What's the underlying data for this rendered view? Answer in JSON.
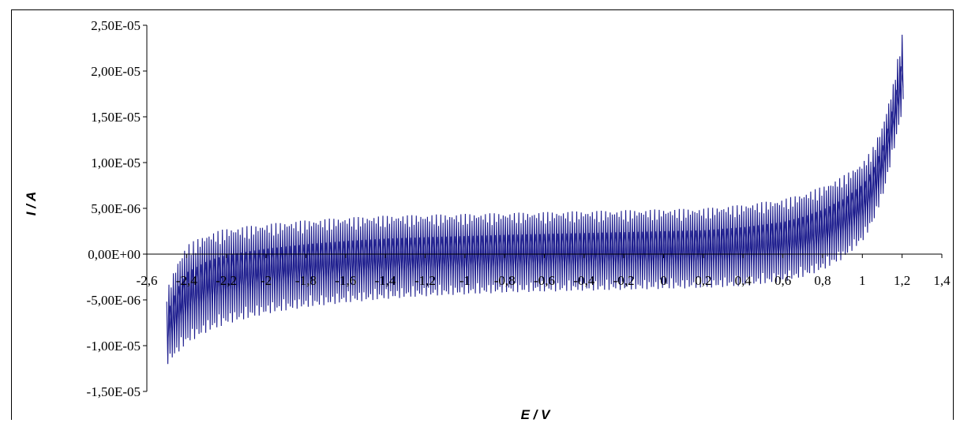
{
  "chart_data": {
    "type": "line",
    "title": "",
    "xlabel": "E / V",
    "ylabel": "I / A",
    "xlim": [
      -2.6,
      1.4
    ],
    "ylim": [
      -1.5e-05,
      2.5e-05
    ],
    "x_ticks": [
      "-2,6",
      "-2,4",
      "-2,2",
      "-2",
      "-1,8",
      "-1,6",
      "-1,4",
      "-1,2",
      "-1",
      "-0,8",
      "-0,6",
      "-0,4",
      "-0,2",
      "0",
      "0,2",
      "0,4",
      "0,6",
      "0,8",
      "1",
      "1,2",
      "1,4"
    ],
    "x_tick_values": [
      -2.6,
      -2.4,
      -2.2,
      -2.0,
      -1.8,
      -1.6,
      -1.4,
      -1.2,
      -1.0,
      -0.8,
      -0.6,
      -0.4,
      -0.2,
      0.0,
      0.2,
      0.4,
      0.6,
      0.8,
      1.0,
      1.2,
      1.4
    ],
    "y_ticks": [
      "2,50E-05",
      "2,00E-05",
      "1,50E-05",
      "1,00E-05",
      "5,00E-06",
      "0,00E+00",
      "-5,00E-06",
      "-1,00E-05",
      "-1,50E-05"
    ],
    "y_tick_values": [
      2.5e-05,
      2e-05,
      1.5e-05,
      1e-05,
      5e-06,
      0.0,
      -5e-06,
      -1e-05,
      -1.5e-05
    ],
    "grid": false,
    "legend": "none",
    "series_color": "#1a1a8c",
    "series": [
      {
        "x": [
          -2.5,
          -2.45,
          -2.4,
          -2.3,
          -2.2,
          -2.0,
          -1.8,
          -1.6,
          -1.4,
          -1.2,
          -1.0,
          -0.8,
          -0.6,
          -0.4,
          -0.2,
          0.0,
          0.2,
          0.4,
          0.6,
          0.7,
          0.8,
          0.9,
          1.0,
          1.05,
          1.1,
          1.15,
          1.2
        ],
        "upper": [
          -4e-06,
          -1e-06,
          1e-06,
          2.2e-06,
          2.8e-06,
          3.3e-06,
          3.7e-06,
          4e-06,
          4.2e-06,
          4.3e-06,
          4.4e-06,
          4.5e-06,
          4.6e-06,
          4.7e-06,
          4.8e-06,
          4.9e-06,
          5e-06,
          5.4e-06,
          6e-06,
          6.6e-06,
          7.4e-06,
          8.5e-06,
          1e-05,
          1.15e-05,
          1.4e-05,
          1.8e-05,
          2.4e-05
        ],
        "lower": [
          -1.2e-05,
          -1.08e-05,
          -9.7e-06,
          -8.5e-06,
          -7.6e-06,
          -6.5e-06,
          -5.8e-06,
          -5.3e-06,
          -4.9e-06,
          -4.6e-06,
          -4.4e-06,
          -4.2e-06,
          -4.1e-06,
          -4e-06,
          -3.9e-06,
          -3.8e-06,
          -3.7e-06,
          -3.5e-06,
          -3e-06,
          -2.5e-06,
          -1.7e-06,
          -5e-07,
          1.5e-06,
          3.5e-06,
          6.5e-06,
          1.1e-05,
          1.6e-05
        ]
      }
    ]
  }
}
